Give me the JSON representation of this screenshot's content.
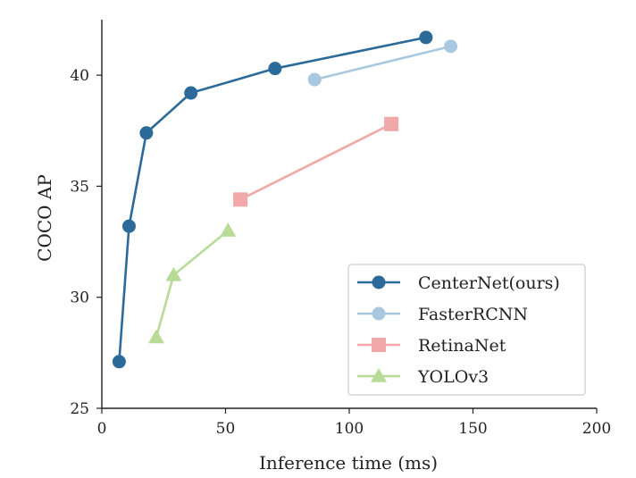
{
  "chart_data": {
    "type": "line",
    "title": "",
    "xlabel": "Inference time (ms)",
    "ylabel": "COCO AP",
    "xlim": [
      0,
      200
    ],
    "ylim": [
      25,
      42.5
    ],
    "xticks": [
      0,
      50,
      100,
      150,
      200
    ],
    "yticks": [
      25,
      30,
      35,
      40
    ],
    "grid": false,
    "legend_position": "bottom-right",
    "series": [
      {
        "name": "CenterNet(ours)",
        "color": "#2b6a99",
        "marker": "circle",
        "x": [
          7,
          11,
          18,
          36,
          70,
          131
        ],
        "y": [
          27.1,
          33.2,
          37.4,
          39.2,
          40.3,
          41.7
        ]
      },
      {
        "name": "FasterRCNN",
        "color": "#a8c8df",
        "marker": "circle",
        "x": [
          86,
          141
        ],
        "y": [
          39.8,
          41.3
        ]
      },
      {
        "name": "RetinaNet",
        "color": "#f1a8a8",
        "marker": "square",
        "x": [
          56,
          117
        ],
        "y": [
          34.4,
          37.8
        ]
      },
      {
        "name": "YOLOv3",
        "color": "#b8dc98",
        "marker": "triangle",
        "x": [
          22,
          29,
          51
        ],
        "y": [
          28.2,
          31.0,
          33.0
        ]
      }
    ]
  }
}
